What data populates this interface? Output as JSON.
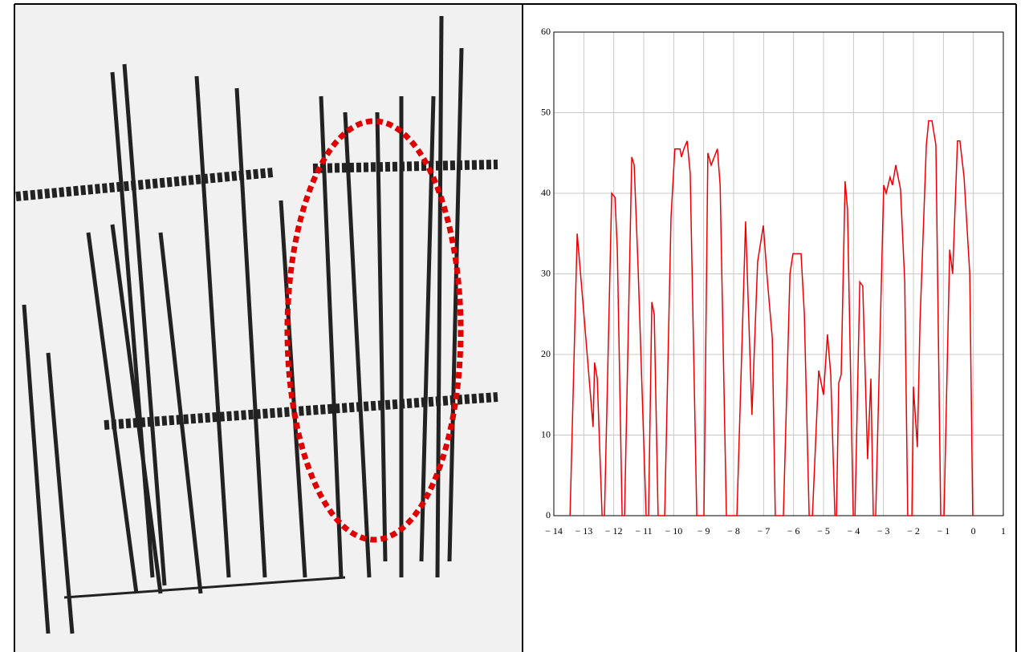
{
  "chart_data": {
    "type": "line",
    "x": [
      -13.46,
      -13.22,
      -13.04,
      -12.69,
      -12.64,
      -12.55,
      -12.39,
      -12.31,
      -12.07,
      -11.96,
      -11.88,
      -11.72,
      -11.64,
      -11.4,
      -11.32,
      -11.19,
      -10.92,
      -10.84,
      -10.73,
      -10.65,
      -10.52,
      -10.3,
      -10.09,
      -9.96,
      -9.79,
      -9.74,
      -9.66,
      -9.55,
      -9.45,
      -9.23,
      -8.99,
      -8.86,
      -8.75,
      -8.54,
      -8.45,
      -8.24,
      -7.89,
      -7.6,
      -7.39,
      -7.2,
      -7.01,
      -6.87,
      -6.71,
      -6.61,
      -6.34,
      -6.12,
      -6.02,
      -5.75,
      -5.64,
      -5.48,
      -5.37,
      -5.16,
      -5.0,
      -4.87,
      -4.76,
      -4.62,
      -4.57,
      -4.49,
      -4.41,
      -4.28,
      -4.2,
      -4.01,
      -3.95,
      -3.79,
      -3.69,
      -3.53,
      -3.42,
      -3.34,
      -3.26,
      -2.99,
      -2.91,
      -2.78,
      -2.7,
      -2.59,
      -2.43,
      -2.29,
      -2.19,
      -2.05,
      -2.0,
      -1.87,
      -1.78,
      -1.57,
      -1.49,
      -1.38,
      -1.25,
      -1.09,
      -0.98,
      -0.79,
      -0.69,
      -0.53,
      -0.45,
      -0.31,
      -0.12,
      -0.02
    ],
    "series": [
      {
        "color": "#ee0000",
        "values": [
          0,
          35,
          27,
          11,
          19,
          17,
          0,
          0,
          40,
          39.5,
          33,
          0,
          0,
          44.5,
          43.5,
          31,
          0,
          0,
          26.5,
          25,
          0,
          0,
          37,
          45.5,
          45.5,
          44.5,
          45.5,
          46.5,
          42.5,
          0,
          0,
          45,
          43.5,
          45.5,
          41,
          0,
          0,
          36.5,
          12.5,
          31.5,
          36,
          29,
          22,
          0,
          0,
          30,
          32.5,
          32.5,
          25,
          0,
          0,
          18,
          15,
          22.5,
          17.5,
          0,
          0,
          16.5,
          17.5,
          41.5,
          38,
          0,
          0,
          29,
          28.5,
          7,
          17,
          0,
          0,
          41,
          40,
          42,
          41,
          43.5,
          40.5,
          29,
          0,
          0,
          16,
          8.5,
          24,
          46,
          49,
          49,
          46,
          0,
          0,
          33,
          30,
          46.5,
          46.5,
          42,
          30,
          0
        ]
      }
    ],
    "xlim": [
      -14,
      1
    ],
    "xticks": [
      {
        "value": -14,
        "label": "− 14"
      },
      {
        "value": -13,
        "label": "− 13"
      },
      {
        "value": -12,
        "label": "− 12"
      },
      {
        "value": -11,
        "label": "− 11"
      },
      {
        "value": -10,
        "label": "− 10"
      },
      {
        "value": -9,
        "label": "− 9"
      },
      {
        "value": -8,
        "label": "− 8"
      },
      {
        "value": -7,
        "label": "− 7"
      },
      {
        "value": -6,
        "label": "− 6"
      },
      {
        "value": -5,
        "label": "− 5"
      },
      {
        "value": -4,
        "label": "− 4"
      },
      {
        "value": -3,
        "label": "− 3"
      },
      {
        "value": -2,
        "label": "− 2"
      },
      {
        "value": -1,
        "label": "− 1"
      },
      0,
      1
    ],
    "ylim": [
      0,
      60
    ],
    "yticks": [
      0,
      10,
      20,
      30,
      40,
      50,
      60
    ],
    "grid": true
  }
}
